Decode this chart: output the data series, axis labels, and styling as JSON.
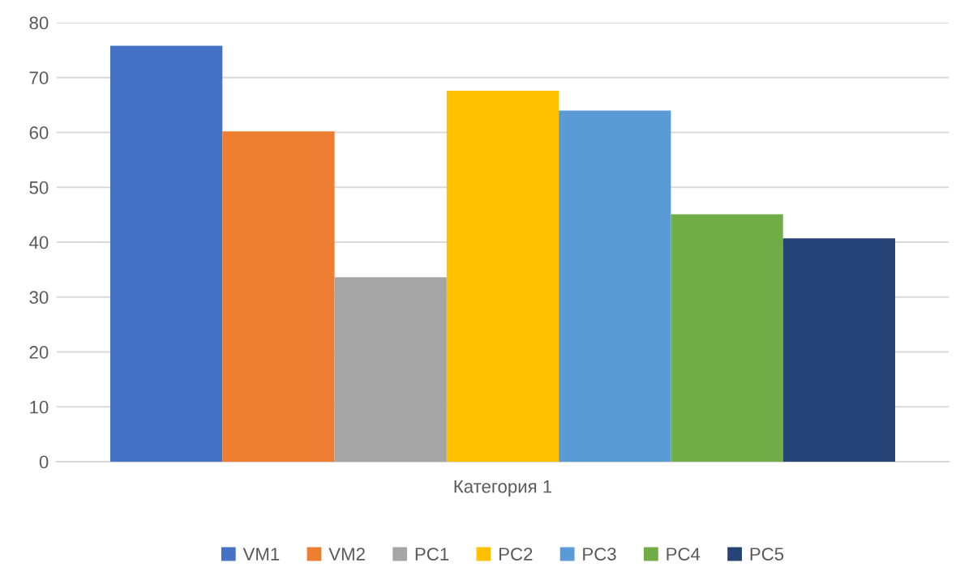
{
  "chart_data": {
    "type": "bar",
    "categories": [
      "Категория 1"
    ],
    "series": [
      {
        "name": "VM1",
        "color": "#4472c4",
        "values": [
          75.8
        ]
      },
      {
        "name": "VM2",
        "color": "#ed7d31",
        "values": [
          60.2
        ]
      },
      {
        "name": "PC1",
        "color": "#a5a5a5",
        "values": [
          33.6
        ]
      },
      {
        "name": "PC2",
        "color": "#ffc000",
        "values": [
          67.6
        ]
      },
      {
        "name": "PC3",
        "color": "#5b9bd5",
        "values": [
          64.0
        ]
      },
      {
        "name": "PC4",
        "color": "#70ad47",
        "values": [
          45.1
        ]
      },
      {
        "name": "PC5",
        "color": "#264478",
        "values": [
          40.7
        ]
      }
    ],
    "ylim": [
      0,
      80
    ],
    "yticks": [
      0,
      10,
      20,
      30,
      40,
      50,
      60,
      70,
      80
    ],
    "grid": "y",
    "legend": "bottom"
  }
}
